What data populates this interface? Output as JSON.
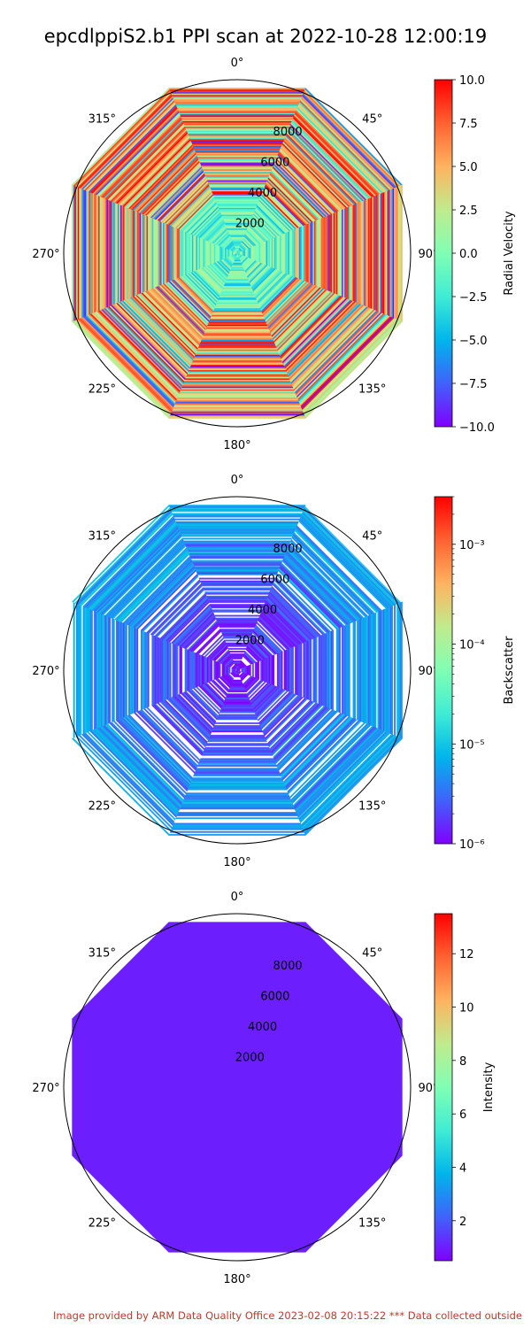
{
  "title": "epcdlppiS2.b1 PPI scan at 2022-10-28 12:00:19",
  "footer": "Image provided by ARM Data Quality Office 2023-02-08 20:15:22    *** Data collected outside",
  "chart_data": [
    {
      "type": "polar",
      "name": "radial_velocity",
      "angle_ticks": [
        "0°",
        "45°",
        "90°",
        "135°",
        "180°",
        "225°",
        "270°",
        "315°"
      ],
      "radial_ticks": [
        2000,
        4000,
        6000,
        8000
      ],
      "rmax": 10500,
      "data_rmax": 10000,
      "colorbar": {
        "label": "Radial Velocity",
        "scale": "linear",
        "min": -10.0,
        "max": 10.0,
        "ticks": [
          "10.0",
          "7.5",
          "5.0",
          "2.5",
          "0.0",
          "−2.5",
          "−5.0",
          "−7.5",
          "−10.0"
        ],
        "colormap": "rainbow"
      }
    },
    {
      "type": "polar",
      "name": "backscatter",
      "angle_ticks": [
        "0°",
        "45°",
        "90°",
        "135°",
        "180°",
        "225°",
        "270°",
        "315°"
      ],
      "radial_ticks": [
        2000,
        4000,
        6000,
        8000
      ],
      "rmax": 10500,
      "data_rmax": 10000,
      "colorbar": {
        "label": "Backscatter",
        "scale": "log",
        "min": 1e-06,
        "max": 0.003,
        "ticks": [
          "10⁻³",
          "10⁻⁴",
          "10⁻⁵",
          "10⁻⁶"
        ],
        "colormap": "rainbow"
      }
    },
    {
      "type": "polar",
      "name": "intensity",
      "angle_ticks": [
        "0°",
        "45°",
        "90°",
        "135°",
        "180°",
        "225°",
        "270°",
        "315°"
      ],
      "radial_ticks": [
        2000,
        4000,
        6000,
        8000
      ],
      "rmax": 10500,
      "data_rmax": 10000,
      "fill_value": 1.0,
      "colorbar": {
        "label": "Intensity",
        "scale": "linear",
        "min": 0.5,
        "max": 13.5,
        "ticks": [
          "12",
          "10",
          "8",
          "6",
          "4",
          "2"
        ],
        "colormap": "rainbow"
      }
    }
  ]
}
